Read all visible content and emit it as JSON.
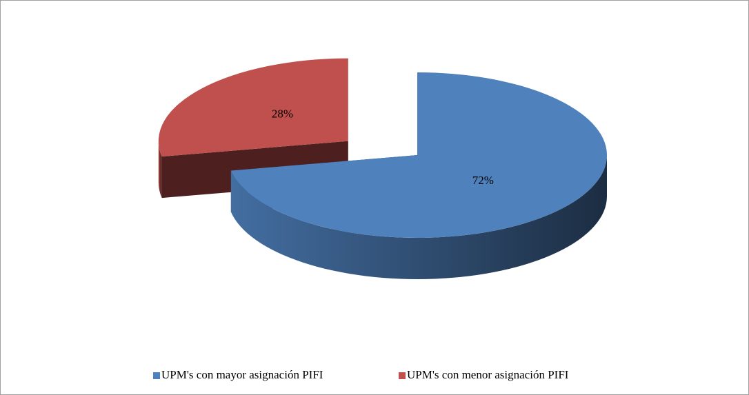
{
  "chart_data": {
    "type": "pie",
    "categories": [
      "UPM's con mayor asignación PIFI",
      "UPM's con menor asignación PIFI"
    ],
    "values": [
      72,
      28
    ],
    "value_labels": [
      "72%",
      "28%"
    ],
    "colors": [
      "#4f81bd",
      "#c0504d"
    ],
    "legend": "bottom"
  }
}
